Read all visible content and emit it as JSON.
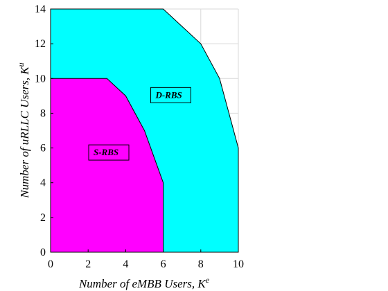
{
  "chart_data": {
    "type": "area",
    "xlabel": "Number of eMBB Users, K",
    "xlabel_sup": "e",
    "ylabel": "Number of uRLLC Users, K",
    "ylabel_sup": "u",
    "xlim": [
      0,
      10
    ],
    "ylim": [
      0,
      14
    ],
    "xticks": [
      "0",
      "2",
      "4",
      "6",
      "8",
      "10"
    ],
    "yticks": [
      "0",
      "2",
      "4",
      "6",
      "8",
      "10",
      "12",
      "14"
    ],
    "grid": true,
    "series": [
      {
        "name": "D-RBS",
        "color": "#00ffff",
        "x": [
          0,
          0,
          6,
          7,
          8,
          9,
          10,
          10
        ],
        "y": [
          0,
          14,
          14,
          13,
          12,
          10,
          6,
          0
        ],
        "label_at": [
          6.4,
          9
        ]
      },
      {
        "name": "S-RBS",
        "color": "#ff00ff",
        "x": [
          0,
          0,
          3,
          4,
          5,
          6,
          6
        ],
        "y": [
          0,
          10,
          10,
          9,
          7,
          4,
          0
        ],
        "label_at": [
          3.1,
          5.7
        ]
      }
    ]
  }
}
